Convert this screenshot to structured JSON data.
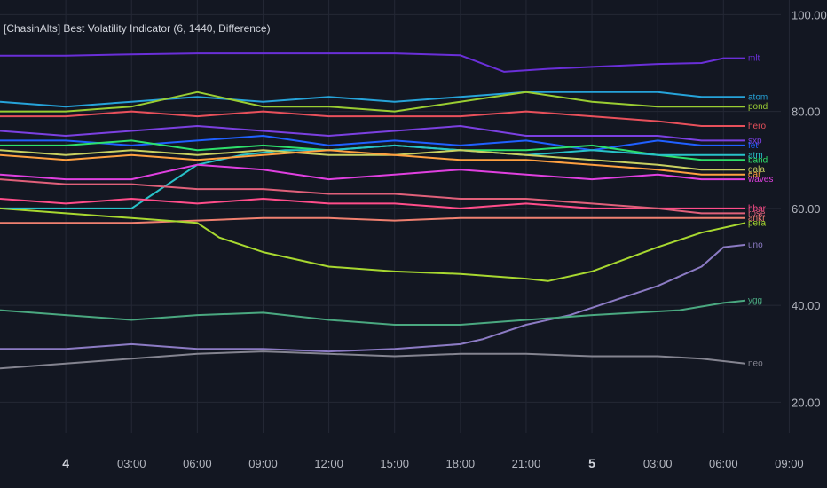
{
  "legend": {
    "title": "[ChasinAlts] Best Volatility Indicator (6, 1440, Difference)"
  },
  "chart_data": {
    "type": "line",
    "title": "[ChasinAlts] Best Volatility Indicator (6, 1440, Difference)",
    "ylim": [
      15.5,
      103
    ],
    "y_ticks": [
      "100.00",
      "80.00",
      "60.00",
      "40.00",
      "20.00"
    ],
    "y_tick_values": [
      100,
      80,
      60,
      40,
      20
    ],
    "x_range": [
      0,
      34
    ],
    "x_ticks": [
      {
        "label": "4",
        "x": 3,
        "bold": true
      },
      {
        "label": "03:00",
        "x": 6
      },
      {
        "label": "06:00",
        "x": 9
      },
      {
        "label": "09:00",
        "x": 12
      },
      {
        "label": "12:00",
        "x": 15
      },
      {
        "label": "15:00",
        "x": 18
      },
      {
        "label": "18:00",
        "x": 21
      },
      {
        "label": "21:00",
        "x": 24
      },
      {
        "label": "5",
        "x": 27,
        "bold": true
      },
      {
        "label": "03:00",
        "x": 30
      },
      {
        "label": "06:00",
        "x": 33
      },
      {
        "label": "09:00",
        "x": 36
      }
    ],
    "grid": true,
    "series": [
      {
        "name": "mlt",
        "color": "#6a2fd8",
        "points": [
          [
            0,
            91.5
          ],
          [
            3,
            91.5
          ],
          [
            6,
            91.8
          ],
          [
            9,
            92
          ],
          [
            12,
            92
          ],
          [
            15,
            92
          ],
          [
            18,
            92
          ],
          [
            21,
            91.6
          ],
          [
            23,
            88.2
          ],
          [
            25,
            88.8
          ],
          [
            27,
            89.2
          ],
          [
            30,
            89.8
          ],
          [
            32,
            90
          ],
          [
            33,
            91
          ],
          [
            34,
            91
          ]
        ]
      },
      {
        "name": "atom",
        "color": "#26a3d9",
        "points": [
          [
            0,
            82
          ],
          [
            3,
            81
          ],
          [
            6,
            82
          ],
          [
            9,
            83
          ],
          [
            12,
            82
          ],
          [
            15,
            83
          ],
          [
            18,
            82
          ],
          [
            21,
            83
          ],
          [
            24,
            84
          ],
          [
            27,
            84
          ],
          [
            30,
            84
          ],
          [
            32,
            83
          ],
          [
            34,
            83
          ]
        ]
      },
      {
        "name": "pond",
        "color": "#9acd32",
        "points": [
          [
            0,
            80
          ],
          [
            3,
            80
          ],
          [
            6,
            81
          ],
          [
            9,
            84
          ],
          [
            12,
            81
          ],
          [
            15,
            81
          ],
          [
            18,
            80
          ],
          [
            21,
            82
          ],
          [
            24,
            84
          ],
          [
            27,
            82
          ],
          [
            30,
            81
          ],
          [
            32,
            81
          ],
          [
            34,
            81
          ]
        ]
      },
      {
        "name": "hero",
        "color": "#e8505b",
        "points": [
          [
            0,
            79
          ],
          [
            3,
            79
          ],
          [
            6,
            80
          ],
          [
            9,
            79
          ],
          [
            12,
            80
          ],
          [
            15,
            79
          ],
          [
            18,
            79
          ],
          [
            21,
            79
          ],
          [
            24,
            80
          ],
          [
            27,
            79
          ],
          [
            30,
            78
          ],
          [
            32,
            77
          ],
          [
            34,
            77
          ]
        ]
      },
      {
        "name": "fet",
        "color": "#2060ff",
        "points": [
          [
            0,
            74
          ],
          [
            3,
            74
          ],
          [
            6,
            73
          ],
          [
            9,
            74
          ],
          [
            12,
            75
          ],
          [
            15,
            73
          ],
          [
            18,
            74
          ],
          [
            21,
            73
          ],
          [
            24,
            74
          ],
          [
            27,
            72
          ],
          [
            30,
            74
          ],
          [
            32,
            73
          ],
          [
            34,
            73
          ]
        ]
      },
      {
        "name": "sxp",
        "color": "#7b40e0",
        "points": [
          [
            0,
            76
          ],
          [
            3,
            75
          ],
          [
            6,
            76
          ],
          [
            9,
            77
          ],
          [
            12,
            76
          ],
          [
            15,
            75
          ],
          [
            18,
            76
          ],
          [
            21,
            77
          ],
          [
            24,
            75
          ],
          [
            27,
            75
          ],
          [
            30,
            75
          ],
          [
            32,
            74
          ],
          [
            34,
            74
          ]
        ]
      },
      {
        "name": "band",
        "color": "#2ee06b",
        "points": [
          [
            0,
            73
          ],
          [
            3,
            73
          ],
          [
            6,
            74
          ],
          [
            9,
            72
          ],
          [
            12,
            73
          ],
          [
            15,
            72
          ],
          [
            18,
            73
          ],
          [
            21,
            72
          ],
          [
            24,
            72
          ],
          [
            27,
            73
          ],
          [
            30,
            71
          ],
          [
            32,
            70
          ],
          [
            34,
            70
          ]
        ]
      },
      {
        "name": "atm",
        "color": "#28c2c9",
        "points": [
          [
            0,
            60
          ],
          [
            3,
            60
          ],
          [
            6,
            60
          ],
          [
            7,
            63
          ],
          [
            9,
            69
          ],
          [
            11,
            71
          ],
          [
            13,
            72
          ],
          [
            15,
            72
          ],
          [
            18,
            73
          ],
          [
            21,
            72
          ],
          [
            24,
            71
          ],
          [
            27,
            72
          ],
          [
            30,
            71
          ],
          [
            32,
            71
          ],
          [
            34,
            71
          ]
        ]
      },
      {
        "name": "gala",
        "color": "#c8d060",
        "points": [
          [
            0,
            72
          ],
          [
            3,
            71
          ],
          [
            6,
            72
          ],
          [
            9,
            71
          ],
          [
            12,
            72
          ],
          [
            15,
            71
          ],
          [
            18,
            71
          ],
          [
            21,
            72
          ],
          [
            24,
            71
          ],
          [
            27,
            70
          ],
          [
            30,
            69
          ],
          [
            32,
            68
          ],
          [
            34,
            68
          ]
        ]
      },
      {
        "name": "waves",
        "color": "#e040e0",
        "points": [
          [
            0,
            67
          ],
          [
            3,
            66
          ],
          [
            6,
            66
          ],
          [
            9,
            69
          ],
          [
            12,
            68
          ],
          [
            15,
            66
          ],
          [
            18,
            67
          ],
          [
            21,
            68
          ],
          [
            24,
            67
          ],
          [
            27,
            66
          ],
          [
            30,
            67
          ],
          [
            32,
            66
          ],
          [
            34,
            66
          ]
        ]
      },
      {
        "name": "dar",
        "color": "#ffa040",
        "points": [
          [
            0,
            71
          ],
          [
            3,
            70
          ],
          [
            6,
            71
          ],
          [
            9,
            70
          ],
          [
            12,
            71
          ],
          [
            15,
            72
          ],
          [
            18,
            71
          ],
          [
            21,
            70
          ],
          [
            24,
            70
          ],
          [
            27,
            69
          ],
          [
            30,
            68
          ],
          [
            32,
            67
          ],
          [
            34,
            67
          ]
        ]
      },
      {
        "name": "hbar",
        "color": "#ff4d8a",
        "points": [
          [
            0,
            62
          ],
          [
            3,
            61
          ],
          [
            6,
            62
          ],
          [
            9,
            61
          ],
          [
            12,
            62
          ],
          [
            15,
            61
          ],
          [
            18,
            61
          ],
          [
            21,
            60
          ],
          [
            24,
            61
          ],
          [
            27,
            60
          ],
          [
            30,
            60
          ],
          [
            32,
            60
          ],
          [
            34,
            60
          ]
        ]
      },
      {
        "name": "rose",
        "color": "#e0607a",
        "points": [
          [
            0,
            66
          ],
          [
            3,
            65
          ],
          [
            6,
            65
          ],
          [
            9,
            64
          ],
          [
            12,
            64
          ],
          [
            15,
            63
          ],
          [
            18,
            63
          ],
          [
            21,
            62
          ],
          [
            24,
            62
          ],
          [
            27,
            61
          ],
          [
            30,
            60
          ],
          [
            32,
            59
          ],
          [
            34,
            59
          ]
        ]
      },
      {
        "name": "ankr",
        "color": "#f08070",
        "points": [
          [
            0,
            57
          ],
          [
            3,
            57
          ],
          [
            6,
            57
          ],
          [
            9,
            57.5
          ],
          [
            12,
            58
          ],
          [
            15,
            58
          ],
          [
            18,
            57.5
          ],
          [
            21,
            58
          ],
          [
            24,
            58
          ],
          [
            27,
            58
          ],
          [
            30,
            58
          ],
          [
            32,
            58
          ],
          [
            34,
            58
          ]
        ]
      },
      {
        "name": "pera",
        "color": "#a8d830",
        "points": [
          [
            0,
            60
          ],
          [
            3,
            59
          ],
          [
            6,
            58
          ],
          [
            9,
            57
          ],
          [
            10,
            54
          ],
          [
            12,
            51
          ],
          [
            15,
            48
          ],
          [
            18,
            47
          ],
          [
            21,
            46.5
          ],
          [
            24,
            45.5
          ],
          [
            25,
            45
          ],
          [
            27,
            47
          ],
          [
            30,
            52
          ],
          [
            32,
            55
          ],
          [
            34,
            57
          ]
        ]
      },
      {
        "name": "uno",
        "color": "#8c7bc4",
        "points": [
          [
            0,
            31
          ],
          [
            3,
            31
          ],
          [
            6,
            32
          ],
          [
            9,
            31
          ],
          [
            12,
            31
          ],
          [
            15,
            30.5
          ],
          [
            18,
            31
          ],
          [
            21,
            32
          ],
          [
            22,
            33
          ],
          [
            24,
            36
          ],
          [
            26,
            38
          ],
          [
            28,
            41
          ],
          [
            30,
            44
          ],
          [
            32,
            48
          ],
          [
            33,
            52
          ],
          [
            34,
            52.5
          ]
        ]
      },
      {
        "name": "ygg",
        "color": "#4aa880",
        "points": [
          [
            0,
            39
          ],
          [
            3,
            38
          ],
          [
            6,
            37
          ],
          [
            9,
            38
          ],
          [
            12,
            38.5
          ],
          [
            15,
            37
          ],
          [
            18,
            36
          ],
          [
            21,
            36
          ],
          [
            24,
            37
          ],
          [
            27,
            38
          ],
          [
            29,
            38.5
          ],
          [
            31,
            39
          ],
          [
            33,
            40.5
          ],
          [
            34,
            41
          ]
        ]
      },
      {
        "name": "neo",
        "color": "#848490",
        "points": [
          [
            0,
            27
          ],
          [
            3,
            28
          ],
          [
            6,
            29
          ],
          [
            9,
            30
          ],
          [
            12,
            30.5
          ],
          [
            15,
            30
          ],
          [
            18,
            29.5
          ],
          [
            21,
            30
          ],
          [
            24,
            30
          ],
          [
            27,
            29.5
          ],
          [
            30,
            29.5
          ],
          [
            32,
            29
          ],
          [
            34,
            28
          ]
        ]
      }
    ]
  }
}
